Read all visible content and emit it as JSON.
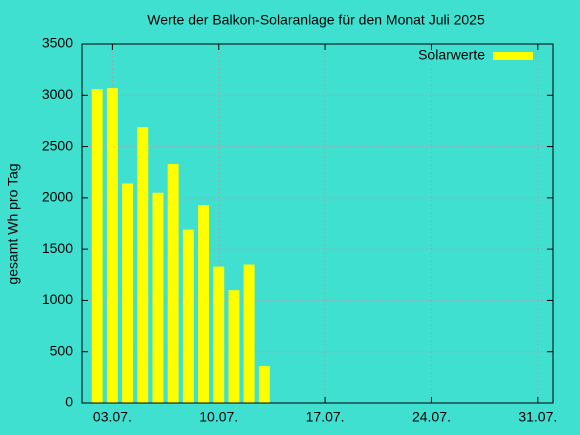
{
  "chart_data": {
    "type": "bar",
    "title": "Werte der Balkon-Solaranlage für den Monat Juli 2025",
    "y_label": "gesamt Wh pro Tag",
    "x": [
      2,
      3,
      4,
      5,
      6,
      7,
      8,
      9,
      10,
      11,
      12,
      13
    ],
    "series": [
      {
        "name": "Solarwerte",
        "color": "#ffff00",
        "values": [
          3060,
          3070,
          2140,
          2690,
          2050,
          2330,
          1690,
          1930,
          1330,
          1100,
          1350,
          360
        ]
      }
    ],
    "xlim": [
      1,
      32
    ],
    "xticks": [
      {
        "value": 3,
        "label": "03.07."
      },
      {
        "value": 10,
        "label": "10.07."
      },
      {
        "value": 17,
        "label": "17.07."
      },
      {
        "value": 24,
        "label": "24.07."
      },
      {
        "value": 31,
        "label": "31.07."
      }
    ],
    "ylim": [
      0,
      3500
    ],
    "yticks": [
      0,
      500,
      1000,
      1500,
      2000,
      2500,
      3000,
      3500
    ],
    "grid": true,
    "legend": "top-right"
  }
}
